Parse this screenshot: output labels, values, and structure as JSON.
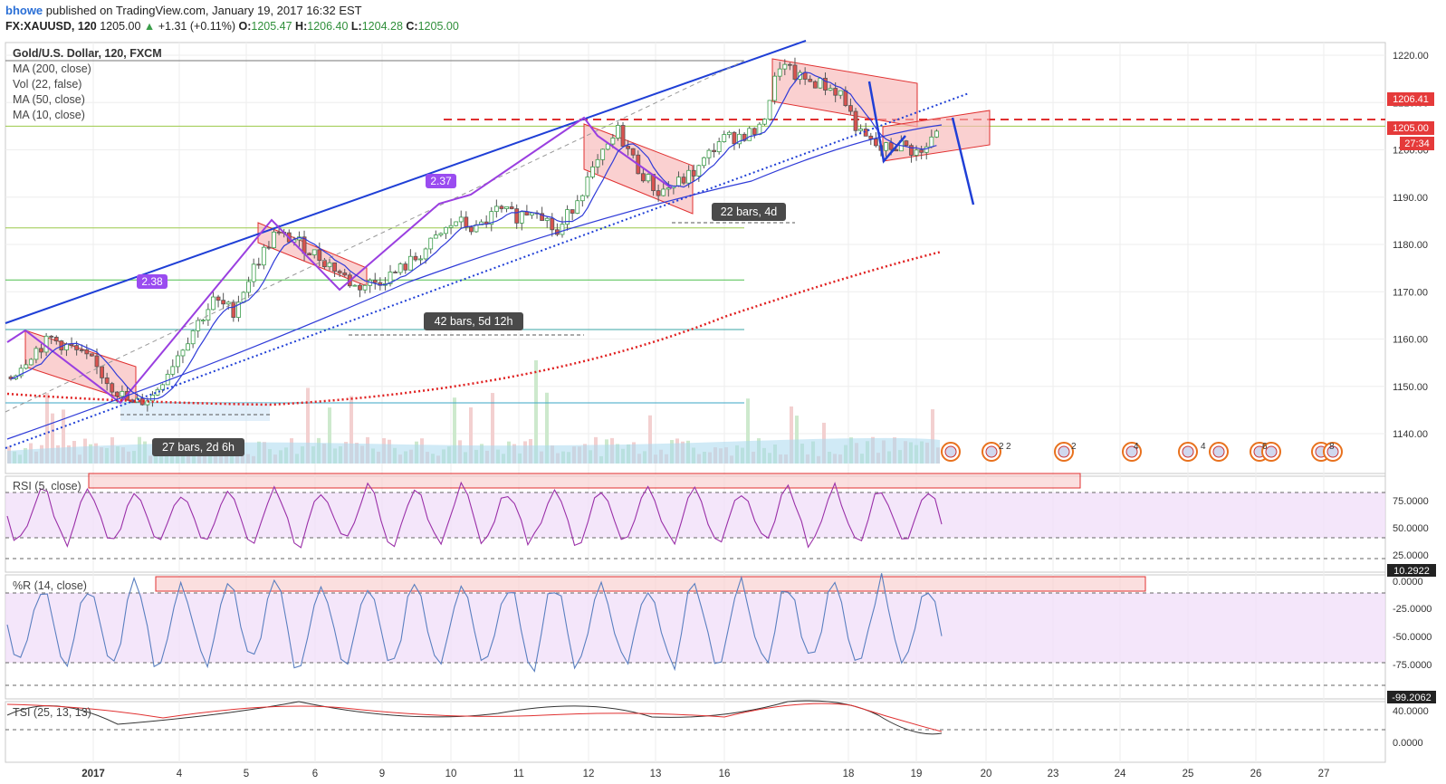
{
  "header": {
    "user": "bhowe",
    "published": "published on TradingView.com, January 19, 2017 16:32 EST",
    "symbol": "FX:XAUUSD, 120",
    "last": "1205.00",
    "change": "+1.31 (+0.11%)",
    "o_label": "O:",
    "o": "1205.47",
    "h_label": "H:",
    "h": "1206.40",
    "l_label": "L:",
    "l": "1204.28",
    "c_label": "C:",
    "c": "1205.00"
  },
  "legend": {
    "title": "Gold/U.S. Dollar, 120, FXCM",
    "studies": [
      "MA (200, close)",
      "Vol (22, false)",
      "MA (50, close)",
      "MA (10, close)"
    ]
  },
  "annotations": {
    "label_238": "2.38",
    "label_237": "2.37",
    "range_27": "27 bars, 2d 6h",
    "range_42": "42 bars, 5d 12h",
    "range_22": "22 bars, 4d"
  },
  "price_badges": {
    "level": "1206.41",
    "current": "1205.00",
    "countdown": "27:34"
  },
  "event_counts": [
    "2",
    "2",
    "2",
    "4",
    "4",
    "6",
    "8"
  ],
  "panes": {
    "rsi": {
      "title": "RSI (5, close)",
      "ticks": [
        "75.0000",
        "50.0000",
        "25.0000"
      ],
      "badge": "10.2922"
    },
    "wpr": {
      "title": "%R (14, close)",
      "ticks": [
        "0.0000",
        "-25.0000",
        "-50.0000",
        "-75.0000"
      ],
      "badge": "-99.2062"
    },
    "tsi": {
      "title": "TSI (25, 13, 13)",
      "ticks": [
        "40.0000",
        "0.0000"
      ]
    }
  },
  "colors": {
    "up": "#3a9d4a",
    "down": "#d9534f",
    "trend_blue": "#1f3fd6",
    "ma10": "#2f3bd8",
    "ma200": "#e02020",
    "resistance": "#e03030",
    "channel_fill": "#f7b7b7",
    "osc_band": "#efdcf8",
    "rsi_line": "#9a2fa8",
    "wpr_line": "#5a7fc0",
    "tsi_line": "#333333",
    "tsi_signal": "#e03030"
  },
  "chart_data": {
    "type": "candlestick",
    "title": "Gold/U.S. Dollar, 120, FXCM",
    "price_axis": {
      "ticks": [
        1220,
        1210,
        1200,
        1190,
        1180,
        1170,
        1160,
        1150,
        1140
      ],
      "labels": [
        "1220.00",
        "1210.00",
        "1200.00",
        "1190.00",
        "1180.00",
        "1170.00",
        "1160.00",
        "1150.00",
        "1140.00"
      ],
      "range": [
        1135,
        1223
      ]
    },
    "time_axis": {
      "labels": [
        "2017",
        "4",
        "5",
        "6",
        "9",
        "10",
        "11",
        "12",
        "13",
        "16",
        "18",
        "19",
        "20",
        "23",
        "24",
        "25",
        "26",
        "27"
      ]
    },
    "horizontal_levels": [
      1206.41,
      1205.0,
      1183.5,
      1172.5,
      1162,
      1146.5
    ],
    "close_path": [
      1152,
      1157,
      1160,
      1158,
      1155,
      1150,
      1146,
      1148,
      1155,
      1162,
      1168,
      1166,
      1175,
      1182,
      1181,
      1178,
      1175,
      1171,
      1172,
      1174,
      1177,
      1181,
      1185,
      1183,
      1187,
      1186,
      1188,
      1182,
      1190,
      1197,
      1204,
      1196,
      1191,
      1193,
      1196,
      1202,
      1203,
      1204,
      1218,
      1215,
      1214,
      1212,
      1203,
      1200,
      1201,
      1199,
      1205
    ]
  }
}
